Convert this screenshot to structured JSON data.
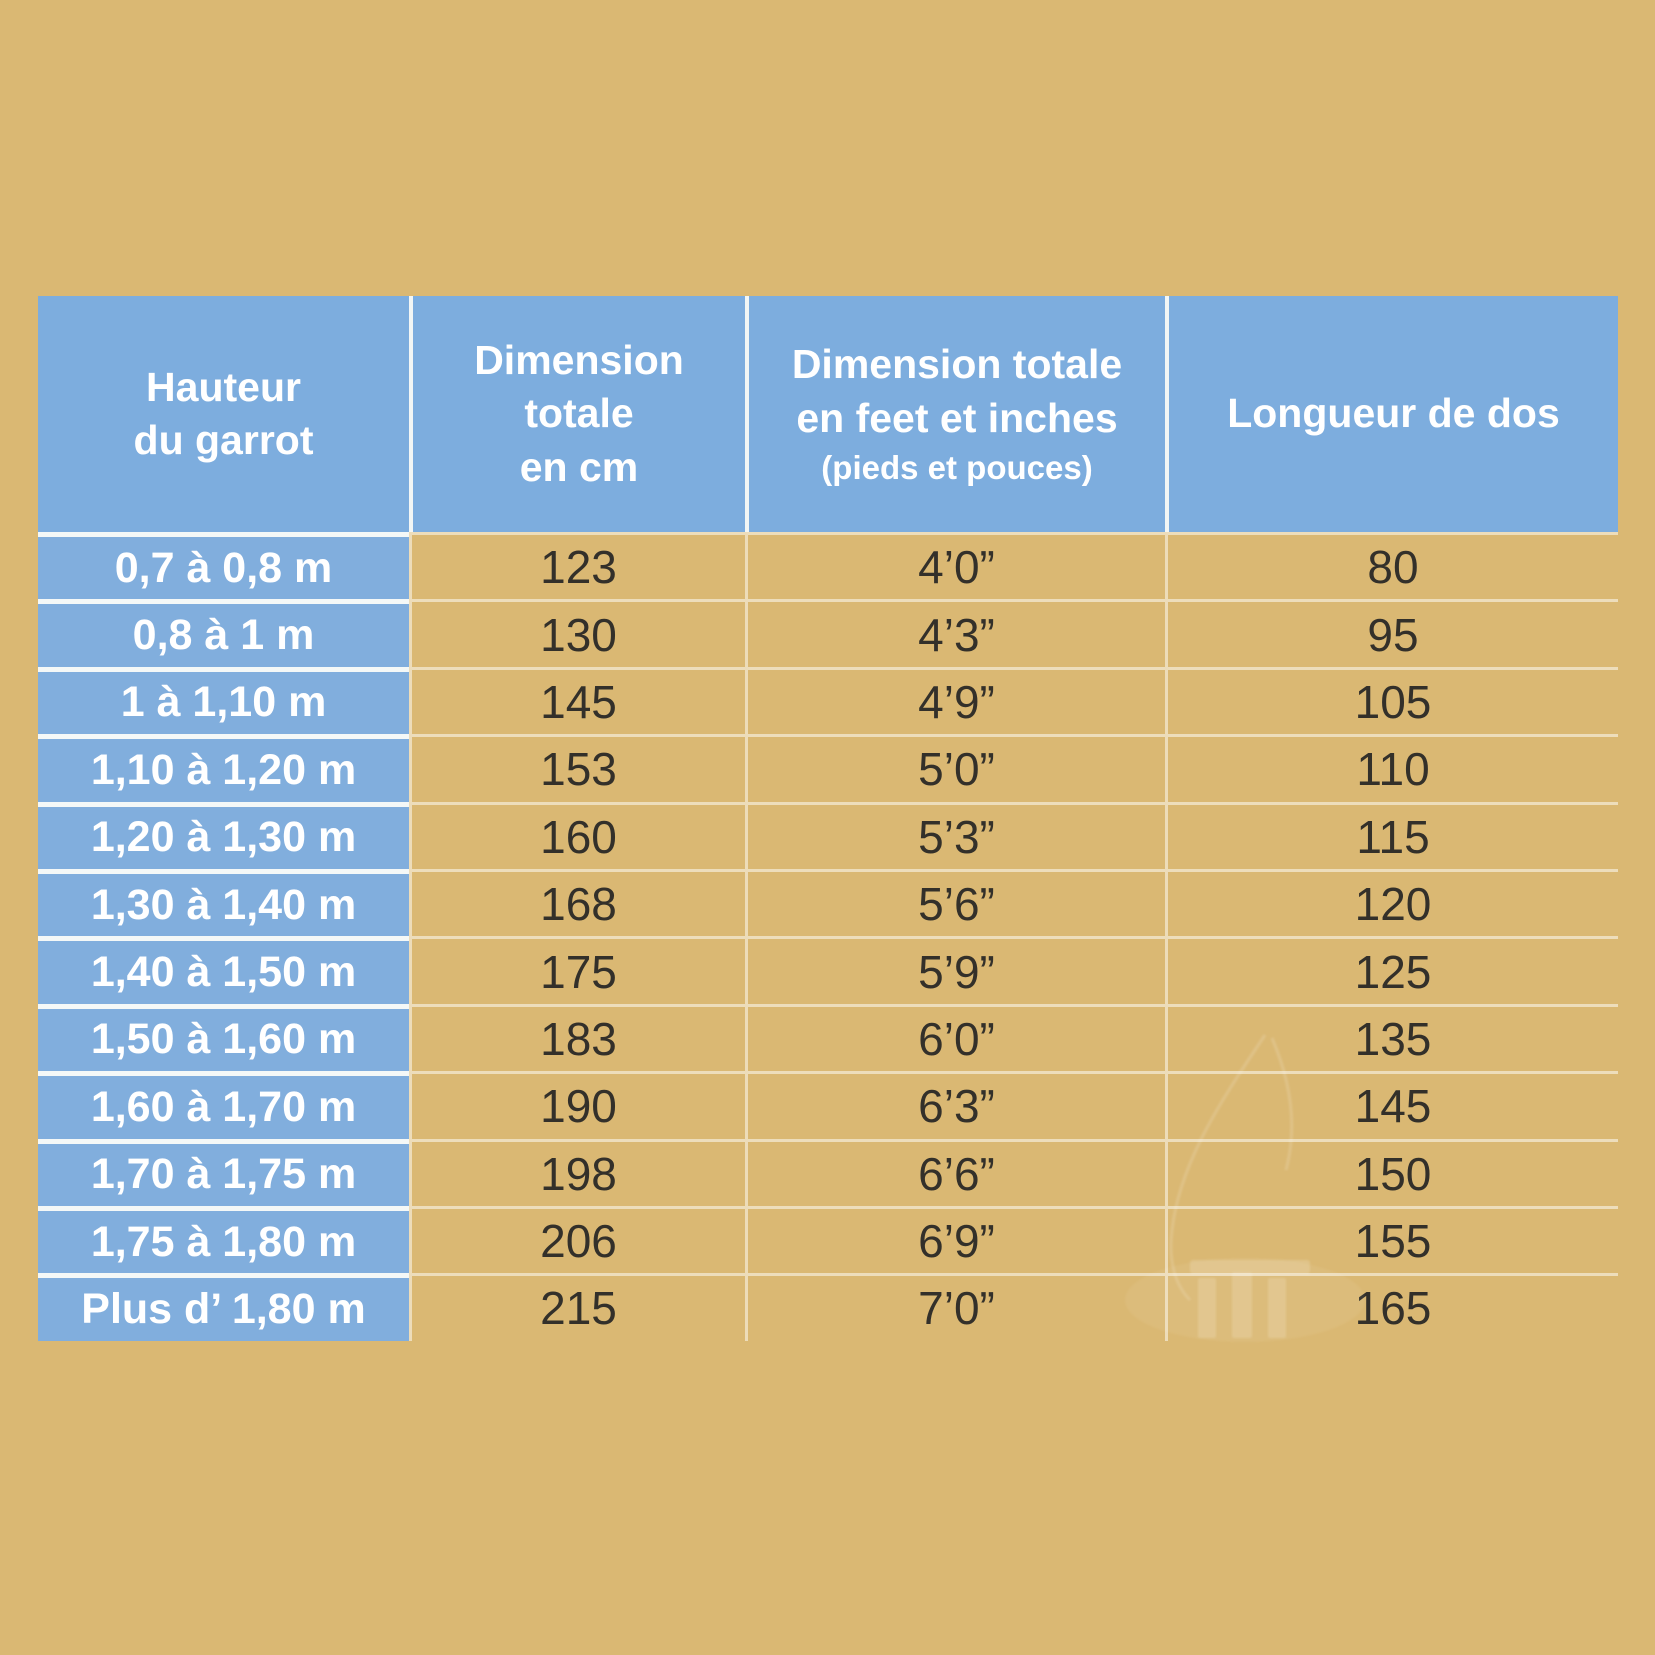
{
  "colors": {
    "background": "#dab873",
    "header_blue": "#7dadde",
    "row_label_blue": "#81aedd",
    "divider_white": "#f4f8f7",
    "value_text": "#33302a",
    "header_text": "#ffffff"
  },
  "table": {
    "columns": [
      {
        "label": "Hauteur\ndu garrot"
      },
      {
        "label": "Dimension\ntotale\nen cm"
      },
      {
        "label": "Dimension totale\nen feet et inches",
        "sublabel": "(pieds et pouces)"
      },
      {
        "label": "Longueur de dos"
      }
    ]
  },
  "chart_data": {
    "type": "table",
    "title": "",
    "columns": [
      "Hauteur du garrot",
      "Dimension totale en cm",
      "Dimension totale en feet et inches (pieds et pouces)",
      "Longueur de dos"
    ],
    "rows": [
      [
        "0,7 à 0,8 m",
        "123",
        "4’0”",
        "80"
      ],
      [
        "0,8 à 1 m",
        "130",
        "4’3”",
        "95"
      ],
      [
        "1 à 1,10 m",
        "145",
        "4’9”",
        "105"
      ],
      [
        "1,10 à 1,20 m",
        "153",
        "5’0”",
        "110"
      ],
      [
        "1,20 à 1,30 m",
        "160",
        "5’3”",
        "115"
      ],
      [
        "1,30 à 1,40 m",
        "168",
        "5’6”",
        "120"
      ],
      [
        "1,40 à 1,50 m",
        "175",
        "5’9”",
        "125"
      ],
      [
        "1,50 à 1,60 m",
        "183",
        "6’0”",
        "135"
      ],
      [
        "1,60 à 1,70 m",
        "190",
        "6’3”",
        "145"
      ],
      [
        "1,70 à 1,75 m",
        "198",
        "6’6”",
        "150"
      ],
      [
        "1,75 à 1,80 m",
        "206",
        "6’9”",
        "155"
      ],
      [
        "Plus d’ 1,80 m",
        "215",
        "7’0”",
        "165"
      ]
    ]
  }
}
